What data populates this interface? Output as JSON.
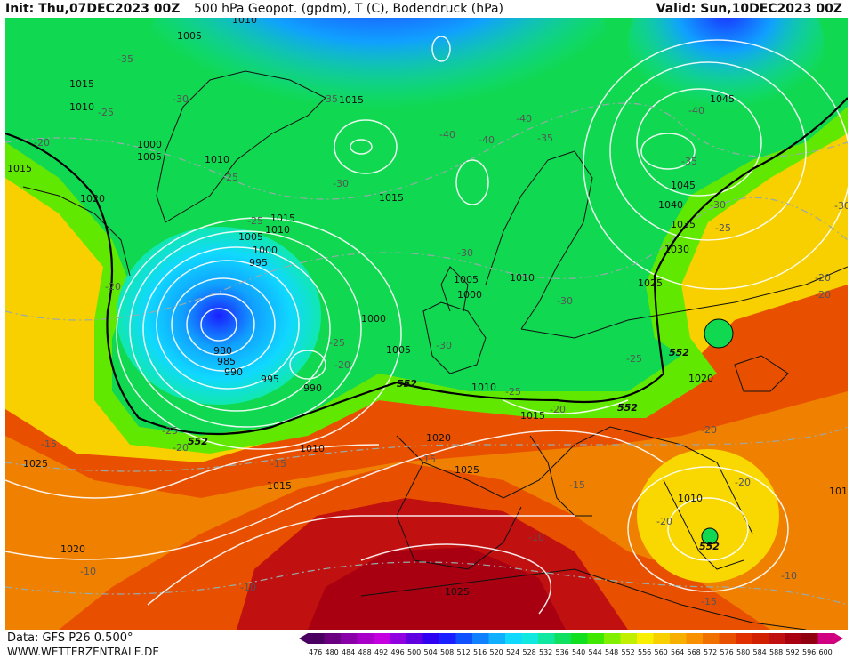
{
  "header": {
    "init": "Init: Thu,07DEC2023 00Z",
    "title": "500 hPa Geopot. (gpdm), T (C), Bodendruck (hPa)",
    "valid": "Valid: Sun,10DEC2023 00Z"
  },
  "footer": {
    "data_source": "Data: GFS P26 0.500°",
    "website": "WWW.WETTERZENTRALE.DE"
  },
  "colorbar": {
    "ticks": [
      "476",
      "480",
      "484",
      "488",
      "492",
      "496",
      "500",
      "504",
      "508",
      "512",
      "516",
      "520",
      "524",
      "528",
      "532",
      "536",
      "540",
      "544",
      "548",
      "552",
      "556",
      "560",
      "564",
      "568",
      "572",
      "576",
      "580",
      "584",
      "588",
      "592",
      "596",
      "600"
    ],
    "colors": [
      "#4a0060",
      "#6a0080",
      "#8a00a8",
      "#a800c8",
      "#c400e0",
      "#9000e0",
      "#6000e0",
      "#3000f0",
      "#1a20ff",
      "#1050ff",
      "#1080ff",
      "#10b0ff",
      "#10d8ff",
      "#10e8e0",
      "#10e8a0",
      "#10e060",
      "#10e020",
      "#40e800",
      "#80f000",
      "#c0f000",
      "#f8f000",
      "#f8d000",
      "#f8b000",
      "#f89000",
      "#f07000",
      "#e85000",
      "#e03000",
      "#d02000",
      "#c01010",
      "#a80010",
      "#900010",
      "#d00080"
    ]
  },
  "pressure_labels": [
    {
      "text": "1010"
    },
    {
      "text": "1005"
    },
    {
      "text": "1015"
    },
    {
      "text": "1010"
    },
    {
      "text": "1000"
    },
    {
      "text": "1005"
    },
    {
      "text": "1010"
    },
    {
      "text": "1015"
    },
    {
      "text": "1015"
    },
    {
      "text": "1020"
    },
    {
      "text": "1015"
    },
    {
      "text": "1010"
    },
    {
      "text": "1005"
    },
    {
      "text": "1000"
    },
    {
      "text": "995"
    },
    {
      "text": "980"
    },
    {
      "text": "985"
    },
    {
      "text": "990"
    },
    {
      "text": "995"
    },
    {
      "text": "990"
    },
    {
      "text": "1000"
    },
    {
      "text": "1005"
    },
    {
      "text": "1005"
    },
    {
      "text": "1000"
    },
    {
      "text": "1010"
    },
    {
      "text": "1015"
    },
    {
      "text": "1045"
    },
    {
      "text": "1045"
    },
    {
      "text": "1040"
    },
    {
      "text": "1035"
    },
    {
      "text": "1030"
    },
    {
      "text": "1025"
    },
    {
      "text": "1020"
    },
    {
      "text": "1010"
    },
    {
      "text": "1010"
    },
    {
      "text": "1015"
    },
    {
      "text": "1020"
    },
    {
      "text": "1025"
    },
    {
      "text": "1025"
    },
    {
      "text": "1015"
    },
    {
      "text": "1020"
    },
    {
      "text": "1025"
    },
    {
      "text": "1010"
    },
    {
      "text": "101"
    }
  ],
  "temperature_labels": [
    {
      "text": "-35"
    },
    {
      "text": "-25"
    },
    {
      "text": "-30"
    },
    {
      "text": "-35"
    },
    {
      "text": "-20"
    },
    {
      "text": "-25"
    },
    {
      "text": "-30"
    },
    {
      "text": "-40"
    },
    {
      "text": "-40"
    },
    {
      "text": "-40"
    },
    {
      "text": "-35"
    },
    {
      "text": "-40"
    },
    {
      "text": "-35"
    },
    {
      "text": "-30"
    },
    {
      "text": "-25"
    },
    {
      "text": "-20"
    },
    {
      "text": "-30"
    },
    {
      "text": "-30"
    },
    {
      "text": "-25"
    },
    {
      "text": "-20"
    },
    {
      "text": "-30"
    },
    {
      "text": "-25"
    },
    {
      "text": "-25"
    },
    {
      "text": "-25"
    },
    {
      "text": "-20"
    },
    {
      "text": "-20"
    },
    {
      "text": "-20"
    },
    {
      "text": "-25"
    },
    {
      "text": "-20"
    },
    {
      "text": "-15"
    },
    {
      "text": "-15"
    },
    {
      "text": "-15"
    },
    {
      "text": "-15"
    },
    {
      "text": "-10"
    },
    {
      "text": "-10"
    },
    {
      "text": "-10"
    },
    {
      "text": "-20"
    },
    {
      "text": "-20"
    },
    {
      "text": "-10"
    },
    {
      "text": "-15"
    },
    {
      "text": "-20"
    },
    {
      "text": "-30"
    }
  ],
  "geopotential_labels": [
    {
      "text": "552"
    },
    {
      "text": "552"
    },
    {
      "text": "552"
    },
    {
      "text": "552"
    },
    {
      "text": "552"
    }
  ]
}
